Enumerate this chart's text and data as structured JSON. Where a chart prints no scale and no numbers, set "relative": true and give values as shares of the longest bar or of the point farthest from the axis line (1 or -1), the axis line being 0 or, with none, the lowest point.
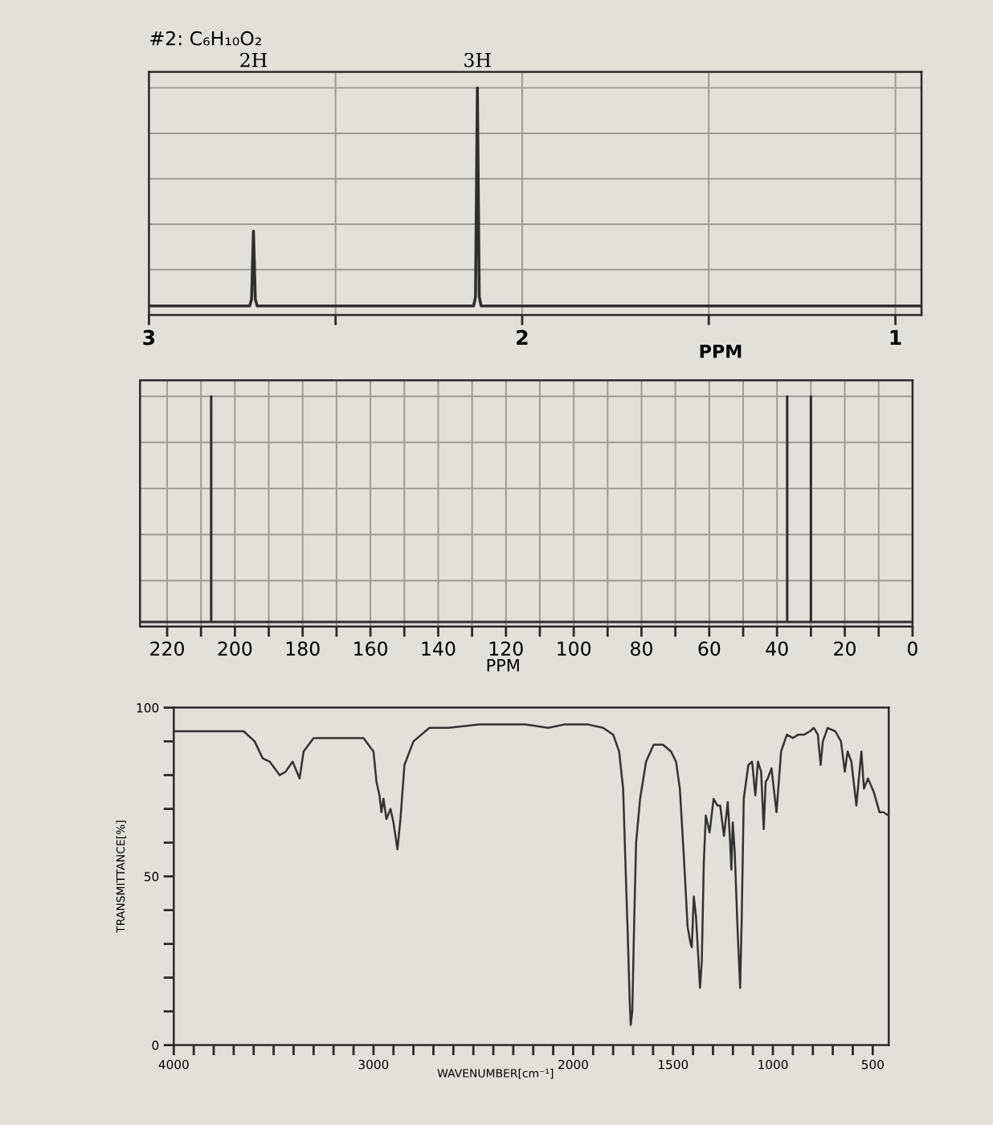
{
  "chart_data": [
    {
      "type": "line",
      "title": "#2: C₆H₁₀O₂",
      "xlabel": "PPM",
      "relative": true,
      "grid": true,
      "xlim": [
        3,
        0.93
      ],
      "xticks": [
        3,
        {
          "value": 2.5,
          "label": null
        },
        2,
        {
          "value": 1.5,
          "label": null
        },
        1
      ],
      "annotations": [
        "2H",
        "3H"
      ],
      "series": [
        {
          "color": "#2f2f2f",
          "x": [
            3,
            2.73,
            2.725,
            2.72,
            2.715,
            2.71,
            2.13,
            2.125,
            2.12,
            2.115,
            2.11,
            0.93
          ],
          "values": [
            0.04,
            0.04,
            0.07,
            0.37,
            0.07,
            0.04,
            0.04,
            0.08,
            1,
            0.08,
            0.04,
            0.04
          ]
        }
      ]
    },
    {
      "type": "line",
      "xlabel": "PPM",
      "relative": true,
      "grid": true,
      "xlim": [
        228,
        0
      ],
      "xticks": [
        220,
        {
          "value": 210,
          "label": null
        },
        200,
        {
          "value": 190,
          "label": null
        },
        180,
        {
          "value": 170,
          "label": null
        },
        160,
        {
          "value": 150,
          "label": null
        },
        140,
        {
          "value": 130,
          "label": null
        },
        120,
        {
          "value": 110,
          "label": null
        },
        100,
        {
          "value": 90,
          "label": null
        },
        80,
        {
          "value": 70,
          "label": null
        },
        60,
        {
          "value": 50,
          "label": null
        },
        40,
        {
          "value": 30,
          "label": null
        },
        20,
        {
          "value": 10,
          "label": null
        },
        0
      ],
      "series": [
        {
          "color": "#2f2f2f",
          "x": [
            228,
            207,
            207,
            207,
            37,
            37,
            37,
            30,
            30,
            30,
            0
          ],
          "values": [
            0.02,
            0.02,
            1,
            0.02,
            0.02,
            1,
            0.02,
            0.02,
            1,
            0.02,
            0.02
          ]
        }
      ]
    },
    {
      "type": "line",
      "xlabel": "WAVENUMBER[cm⁻¹]",
      "ylabel": "TRANSMITTANCE[%]",
      "xlim": [
        4000,
        420
      ],
      "ylim": [
        0,
        100
      ],
      "xticks": [
        4000,
        {
          "value": 3900,
          "label": null
        },
        {
          "value": 3800,
          "label": null
        },
        {
          "value": 3700,
          "label": null
        },
        {
          "value": 3600,
          "label": null
        },
        {
          "value": 3500,
          "label": null
        },
        {
          "value": 3400,
          "label": null
        },
        {
          "value": 3300,
          "label": null
        },
        {
          "value": 3200,
          "label": null
        },
        {
          "value": 3100,
          "label": null
        },
        3000,
        {
          "value": 2900,
          "label": null
        },
        {
          "value": 2800,
          "label": null
        },
        {
          "value": 2700,
          "label": null
        },
        {
          "value": 2600,
          "label": null
        },
        {
          "value": 2500,
          "label": null
        },
        {
          "value": 2400,
          "label": null
        },
        {
          "value": 2300,
          "label": null
        },
        {
          "value": 2200,
          "label": null
        },
        {
          "value": 2100,
          "label": null
        },
        2000,
        {
          "value": 1900,
          "label": null
        },
        {
          "value": 1800,
          "label": null
        },
        {
          "value": 1700,
          "label": null
        },
        {
          "value": 1600,
          "label": null
        },
        1500,
        {
          "value": 1400,
          "label": null
        },
        {
          "value": 1300,
          "label": null
        },
        {
          "value": 1200,
          "label": null
        },
        {
          "value": 1100,
          "label": null
        },
        1000,
        {
          "value": 900,
          "label": null
        },
        {
          "value": 800,
          "label": null
        },
        {
          "value": 700,
          "label": null
        },
        {
          "value": 600,
          "label": null
        },
        500
      ],
      "yticks": [
        0,
        {
          "value": 10,
          "label": null
        },
        {
          "value": 20,
          "label": null
        },
        {
          "value": 30,
          "label": null
        },
        {
          "value": 40,
          "label": null
        },
        50,
        {
          "value": 60,
          "label": null
        },
        {
          "value": 70,
          "label": null
        },
        {
          "value": 80,
          "label": null
        },
        {
          "value": 90,
          "label": null
        },
        100
      ],
      "series": [
        {
          "color": "#333333",
          "x": [
            4000,
            3650,
            3595,
            3555,
            3520,
            3470,
            3440,
            3405,
            3370,
            3350,
            3300,
            3200,
            3050,
            3000,
            2985,
            2970,
            2960,
            2950,
            2935,
            2915,
            2900,
            2880,
            2865,
            2845,
            2800,
            2720,
            2625,
            2470,
            2240,
            2125,
            2045,
            1925,
            1850,
            1800,
            1770,
            1750,
            1740,
            1727,
            1717,
            1712,
            1704,
            1694,
            1685,
            1665,
            1635,
            1597,
            1550,
            1510,
            1485,
            1466,
            1447,
            1427,
            1412,
            1406,
            1396,
            1385,
            1365,
            1356,
            1346,
            1336,
            1317,
            1297,
            1278,
            1264,
            1245,
            1226,
            1214,
            1208,
            1201,
            1191,
            1176,
            1164,
            1156,
            1146,
            1123,
            1104,
            1088,
            1075,
            1059,
            1046,
            1036,
            1026,
            1007,
            982,
            959,
            930,
            901,
            872,
            843,
            814,
            795,
            775,
            761,
            750,
            726,
            688,
            659,
            640,
            626,
            607,
            582,
            557,
            544,
            524,
            495,
            466,
            447,
            420
          ],
          "values": [
            93,
            93,
            90,
            85,
            84,
            80,
            81,
            84,
            79,
            87,
            91,
            91,
            91,
            87,
            78,
            74,
            69,
            73,
            67,
            70,
            66,
            58,
            67,
            83,
            90,
            94,
            94,
            95,
            95,
            94,
            95,
            95,
            94,
            92,
            87,
            76,
            57,
            33,
            13,
            6,
            10,
            38,
            60,
            73,
            84,
            89,
            89,
            87,
            84,
            76,
            57,
            35,
            30,
            29,
            44,
            38,
            17,
            25,
            54,
            68,
            63,
            73,
            71,
            71,
            62,
            72,
            60,
            52,
            66,
            57,
            33,
            17,
            38,
            73,
            83,
            84,
            74,
            84,
            81,
            64,
            78,
            79,
            82,
            69,
            87,
            92,
            91,
            92,
            92,
            93,
            94,
            92,
            83,
            90,
            94,
            93,
            90,
            81,
            87,
            84,
            71,
            87,
            76,
            79,
            75,
            69,
            69,
            68
          ]
        }
      ]
    }
  ]
}
